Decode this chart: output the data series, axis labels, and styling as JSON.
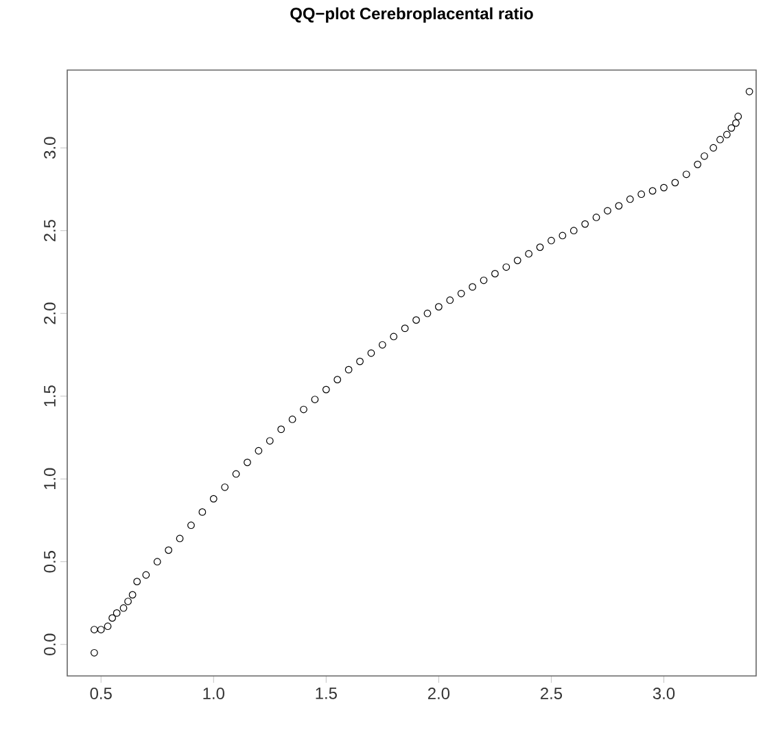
{
  "chart_data": {
    "type": "scatter",
    "title": "QQ−plot Cerebroplacental ratio",
    "x": [
      0.47,
      0.47,
      0.5,
      0.53,
      0.55,
      0.57,
      0.6,
      0.62,
      0.64,
      0.66,
      0.7,
      0.75,
      0.8,
      0.85,
      0.9,
      0.95,
      1.0,
      1.05,
      1.1,
      1.15,
      1.2,
      1.25,
      1.3,
      1.35,
      1.4,
      1.45,
      1.5,
      1.55,
      1.6,
      1.65,
      1.7,
      1.75,
      1.8,
      1.85,
      1.9,
      1.95,
      2.0,
      2.05,
      2.1,
      2.15,
      2.2,
      2.25,
      2.3,
      2.35,
      2.4,
      2.45,
      2.5,
      2.55,
      2.6,
      2.65,
      2.7,
      2.75,
      2.8,
      2.85,
      2.9,
      2.95,
      3.0,
      3.05,
      3.1,
      3.15,
      3.18,
      3.22,
      3.25,
      3.28,
      3.3,
      3.32,
      3.33,
      3.38
    ],
    "values": [
      -0.05,
      0.09,
      0.09,
      0.11,
      0.16,
      0.19,
      0.22,
      0.26,
      0.3,
      0.38,
      0.42,
      0.5,
      0.57,
      0.64,
      0.72,
      0.8,
      0.88,
      0.95,
      1.03,
      1.1,
      1.17,
      1.23,
      1.3,
      1.36,
      1.42,
      1.48,
      1.54,
      1.6,
      1.66,
      1.71,
      1.76,
      1.81,
      1.86,
      1.91,
      1.96,
      2.0,
      2.04,
      2.08,
      2.12,
      2.16,
      2.2,
      2.24,
      2.28,
      2.32,
      2.36,
      2.4,
      2.44,
      2.47,
      2.5,
      2.54,
      2.58,
      2.62,
      2.65,
      2.69,
      2.72,
      2.74,
      2.76,
      2.79,
      2.84,
      2.9,
      2.95,
      3.0,
      3.05,
      3.08,
      3.12,
      3.15,
      3.19,
      3.34
    ],
    "color": "#000000",
    "marker": "circle",
    "xlim": [
      0.35,
      3.41
    ],
    "ylim": [
      -0.19,
      3.47
    ],
    "xticks": [
      0.5,
      {
        "value": 1,
        "label": "1.0"
      },
      1.5,
      {
        "value": 2,
        "label": "2.0"
      },
      2.5,
      {
        "value": 3,
        "label": "3.0"
      }
    ],
    "yticks": [
      {
        "value": 0,
        "label": "0.0"
      },
      0.5,
      {
        "value": 1,
        "label": "1.0"
      },
      1.5,
      {
        "value": 2,
        "label": "2.0"
      },
      2.5,
      {
        "value": 3,
        "label": "3.0"
      }
    ]
  }
}
